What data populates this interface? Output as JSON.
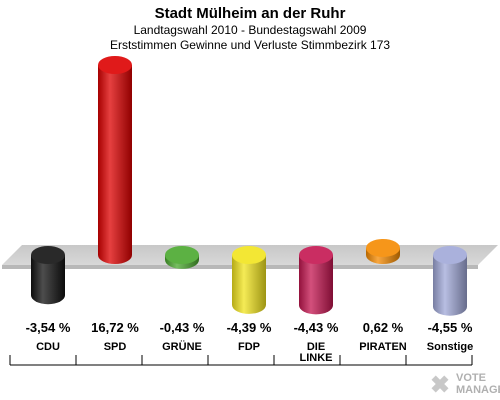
{
  "chart_data": {
    "type": "bar",
    "title": "Stadt Mülheim an der Ruhr",
    "subtitle_1": "Landtagswahl 2010 - Bundestagswahl 2009",
    "subtitle_2": "Erststimmen Gewinne und Verluste Stimmbezirk 173",
    "categories": [
      "CDU",
      "SPD",
      "GRÜNE",
      "FDP",
      "DIE LINKE",
      "PIRATEN",
      "Sonstige"
    ],
    "values": [
      -3.54,
      16.72,
      -0.43,
      -4.39,
      -4.43,
      0.62,
      -4.55
    ],
    "value_labels": [
      "-3,54 %",
      "16,72 %",
      "-0,43 %",
      "-4,39 %",
      "-4,43 %",
      "0,62 %",
      "-4,55 %"
    ],
    "colors": [
      "#111111",
      "#dd0000",
      "#4aa82e",
      "#f2e41d",
      "#c41650",
      "#f58a00",
      "#a0a8d8"
    ],
    "xlabel": "",
    "ylabel": "",
    "grid": false,
    "logo": {
      "line1": "VOTE",
      "line2": "MANAGER"
    }
  }
}
